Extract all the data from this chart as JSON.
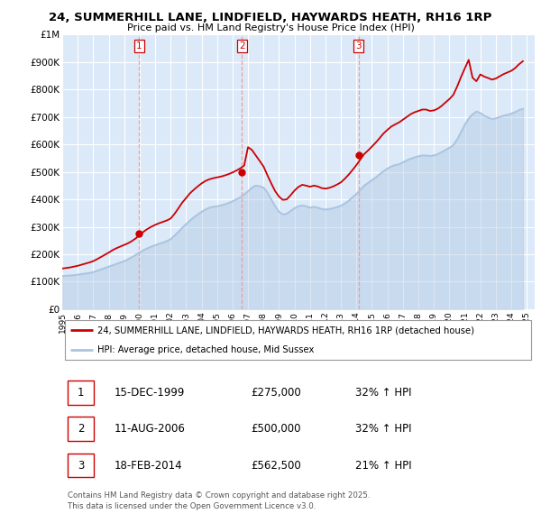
{
  "title": "24, SUMMERHILL LANE, LINDFIELD, HAYWARDS HEATH, RH16 1RP",
  "subtitle": "Price paid vs. HM Land Registry's House Price Index (HPI)",
  "ylim": [
    0,
    1000000
  ],
  "yticks": [
    0,
    100000,
    200000,
    300000,
    400000,
    500000,
    600000,
    700000,
    800000,
    900000,
    1000000
  ],
  "ytick_labels": [
    "£0",
    "£100K",
    "£200K",
    "£300K",
    "£400K",
    "£500K",
    "£600K",
    "£700K",
    "£800K",
    "£900K",
    "£1M"
  ],
  "xlim_start": 1995.0,
  "xlim_end": 2025.5,
  "xticks": [
    1995,
    1996,
    1997,
    1998,
    1999,
    2000,
    2001,
    2002,
    2003,
    2004,
    2005,
    2006,
    2007,
    2008,
    2009,
    2010,
    2011,
    2012,
    2013,
    2014,
    2015,
    2016,
    2017,
    2018,
    2019,
    2020,
    2021,
    2022,
    2023,
    2024,
    2025
  ],
  "background_color": "#ffffff",
  "plot_bg_color": "#dce9f8",
  "grid_color": "#ffffff",
  "red_line_color": "#cc0000",
  "blue_line_color": "#aac4e0",
  "vline_color": "#e8a0a0",
  "purchase_marker_color": "#cc0000",
  "legend_label_red": "24, SUMMERHILL LANE, LINDFIELD, HAYWARDS HEATH, RH16 1RP (detached house)",
  "legend_label_blue": "HPI: Average price, detached house, Mid Sussex",
  "transactions": [
    {
      "id": 1,
      "date": "15-DEC-1999",
      "year": 1999.958,
      "price": 275000,
      "hpi_pct": "32%",
      "label": "1"
    },
    {
      "id": 2,
      "date": "11-AUG-2006",
      "year": 2006.614,
      "price": 500000,
      "hpi_pct": "32%",
      "label": "2"
    },
    {
      "id": 3,
      "date": "18-FEB-2014",
      "year": 2014.131,
      "price": 562500,
      "hpi_pct": "21%",
      "label": "3"
    }
  ],
  "footer_text": "Contains HM Land Registry data © Crown copyright and database right 2025.\nThis data is licensed under the Open Government Licence v3.0.",
  "hpi_data_x": [
    1995.0,
    1995.25,
    1995.5,
    1995.75,
    1996.0,
    1996.25,
    1996.5,
    1996.75,
    1997.0,
    1997.25,
    1997.5,
    1997.75,
    1998.0,
    1998.25,
    1998.5,
    1998.75,
    1999.0,
    1999.25,
    1999.5,
    1999.75,
    2000.0,
    2000.25,
    2000.5,
    2000.75,
    2001.0,
    2001.25,
    2001.5,
    2001.75,
    2002.0,
    2002.25,
    2002.5,
    2002.75,
    2003.0,
    2003.25,
    2003.5,
    2003.75,
    2004.0,
    2004.25,
    2004.5,
    2004.75,
    2005.0,
    2005.25,
    2005.5,
    2005.75,
    2006.0,
    2006.25,
    2006.5,
    2006.75,
    2007.0,
    2007.25,
    2007.5,
    2007.75,
    2008.0,
    2008.25,
    2008.5,
    2008.75,
    2009.0,
    2009.25,
    2009.5,
    2009.75,
    2010.0,
    2010.25,
    2010.5,
    2010.75,
    2011.0,
    2011.25,
    2011.5,
    2011.75,
    2012.0,
    2012.25,
    2012.5,
    2012.75,
    2013.0,
    2013.25,
    2013.5,
    2013.75,
    2014.0,
    2014.25,
    2014.5,
    2014.75,
    2015.0,
    2015.25,
    2015.5,
    2015.75,
    2016.0,
    2016.25,
    2016.5,
    2016.75,
    2017.0,
    2017.25,
    2017.5,
    2017.75,
    2018.0,
    2018.25,
    2018.5,
    2018.75,
    2019.0,
    2019.25,
    2019.5,
    2019.75,
    2020.0,
    2020.25,
    2020.5,
    2020.75,
    2021.0,
    2021.25,
    2021.5,
    2021.75,
    2022.0,
    2022.25,
    2022.5,
    2022.75,
    2023.0,
    2023.25,
    2023.5,
    2023.75,
    2024.0,
    2024.25,
    2024.5,
    2024.75
  ],
  "hpi_data_y": [
    121000,
    122000,
    123000,
    124000,
    126000,
    128000,
    130000,
    132000,
    135000,
    140000,
    145000,
    150000,
    155000,
    160000,
    165000,
    170000,
    175000,
    182000,
    190000,
    198000,
    207000,
    215000,
    222000,
    228000,
    233000,
    238000,
    243000,
    248000,
    255000,
    268000,
    282000,
    297000,
    310000,
    323000,
    335000,
    345000,
    355000,
    363000,
    370000,
    373000,
    375000,
    378000,
    382000,
    387000,
    393000,
    400000,
    408000,
    418000,
    430000,
    443000,
    450000,
    448000,
    443000,
    425000,
    400000,
    375000,
    355000,
    345000,
    348000,
    358000,
    368000,
    375000,
    378000,
    375000,
    370000,
    373000,
    370000,
    365000,
    363000,
    365000,
    368000,
    372000,
    377000,
    385000,
    395000,
    408000,
    420000,
    435000,
    450000,
    460000,
    470000,
    480000,
    492000,
    503000,
    512000,
    520000,
    525000,
    528000,
    535000,
    542000,
    548000,
    553000,
    557000,
    560000,
    560000,
    558000,
    560000,
    565000,
    572000,
    580000,
    588000,
    598000,
    618000,
    645000,
    672000,
    695000,
    710000,
    720000,
    715000,
    705000,
    698000,
    693000,
    695000,
    700000,
    705000,
    708000,
    712000,
    718000,
    725000,
    730000
  ],
  "price_data_x": [
    1995.0,
    1995.25,
    1995.5,
    1995.75,
    1996.0,
    1996.25,
    1996.5,
    1996.75,
    1997.0,
    1997.25,
    1997.5,
    1997.75,
    1998.0,
    1998.25,
    1998.5,
    1998.75,
    1999.0,
    1999.25,
    1999.5,
    1999.75,
    2000.0,
    2000.25,
    2000.5,
    2000.75,
    2001.0,
    2001.25,
    2001.5,
    2001.75,
    2002.0,
    2002.25,
    2002.5,
    2002.75,
    2003.0,
    2003.25,
    2003.5,
    2003.75,
    2004.0,
    2004.25,
    2004.5,
    2004.75,
    2005.0,
    2005.25,
    2005.5,
    2005.75,
    2006.0,
    2006.25,
    2006.5,
    2006.75,
    2007.0,
    2007.25,
    2007.5,
    2007.75,
    2008.0,
    2008.25,
    2008.5,
    2008.75,
    2009.0,
    2009.25,
    2009.5,
    2009.75,
    2010.0,
    2010.25,
    2010.5,
    2010.75,
    2011.0,
    2011.25,
    2011.5,
    2011.75,
    2012.0,
    2012.25,
    2012.5,
    2012.75,
    2013.0,
    2013.25,
    2013.5,
    2013.75,
    2014.0,
    2014.25,
    2014.5,
    2014.75,
    2015.0,
    2015.25,
    2015.5,
    2015.75,
    2016.0,
    2016.25,
    2016.5,
    2016.75,
    2017.0,
    2017.25,
    2017.5,
    2017.75,
    2018.0,
    2018.25,
    2018.5,
    2018.75,
    2019.0,
    2019.25,
    2019.5,
    2019.75,
    2020.0,
    2020.25,
    2020.5,
    2020.75,
    2021.0,
    2021.25,
    2021.5,
    2021.75,
    2022.0,
    2022.25,
    2022.5,
    2022.75,
    2023.0,
    2023.25,
    2023.5,
    2023.75,
    2024.0,
    2024.25,
    2024.5,
    2024.75
  ],
  "price_data_y": [
    148000,
    150000,
    152000,
    155000,
    158000,
    162000,
    166000,
    170000,
    175000,
    182000,
    190000,
    198000,
    206000,
    215000,
    222000,
    228000,
    234000,
    240000,
    248000,
    258000,
    270000,
    282000,
    292000,
    300000,
    307000,
    313000,
    318000,
    323000,
    330000,
    347000,
    367000,
    388000,
    405000,
    422000,
    435000,
    447000,
    458000,
    467000,
    473000,
    477000,
    480000,
    483000,
    487000,
    492000,
    498000,
    505000,
    513000,
    523000,
    590000,
    580000,
    560000,
    540000,
    520000,
    488000,
    458000,
    430000,
    410000,
    398000,
    400000,
    415000,
    432000,
    445000,
    453000,
    450000,
    446000,
    450000,
    447000,
    441000,
    439000,
    442000,
    447000,
    454000,
    462000,
    475000,
    490000,
    507000,
    525000,
    545000,
    565000,
    578000,
    592000,
    607000,
    623000,
    640000,
    653000,
    665000,
    673000,
    680000,
    690000,
    700000,
    710000,
    717000,
    722000,
    727000,
    727000,
    722000,
    724000,
    730000,
    740000,
    753000,
    765000,
    780000,
    810000,
    845000,
    877000,
    908000,
    843000,
    830000,
    855000,
    847000,
    842000,
    836000,
    840000,
    848000,
    856000,
    862000,
    868000,
    878000,
    892000,
    903000
  ]
}
